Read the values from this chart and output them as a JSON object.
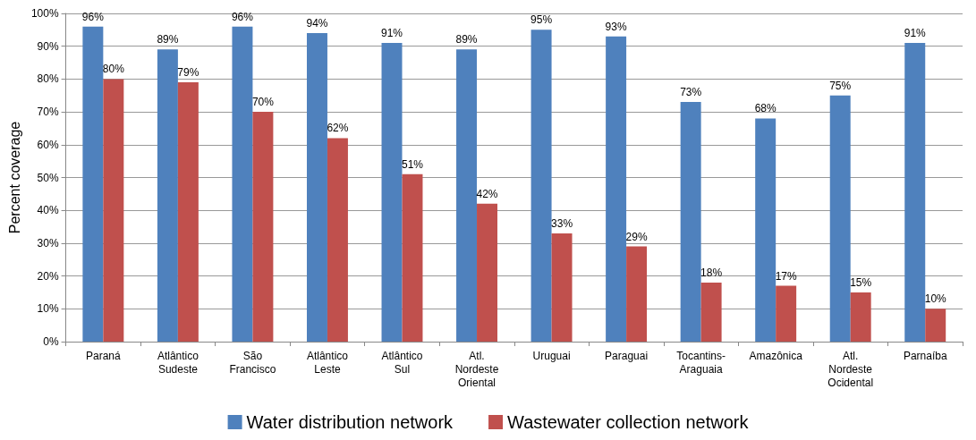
{
  "chart_data": {
    "type": "bar",
    "ylabel": "Percent coverage",
    "categories": [
      "Paraná",
      "Atlântico\nSudeste",
      "São\nFrancisco",
      "Atlântico\nLeste",
      "Atlântico\nSul",
      "Atl.\nNordeste\nOriental",
      "Uruguai",
      "Paraguai",
      "Tocantins-\nAraguaia",
      "Amazônica",
      "Atl.\nNordeste\nOcidental",
      "Parnaíba"
    ],
    "series": [
      {
        "name": "Water distribution network",
        "color": "#4f81bd",
        "values": [
          96,
          89,
          96,
          94,
          91,
          89,
          95,
          93,
          73,
          68,
          75,
          91
        ],
        "value_labels": [
          "96%",
          "89%",
          "96%",
          "94%",
          "91%",
          "89%",
          "95%",
          "93%",
          "73%",
          "68%",
          "75%",
          "91%"
        ]
      },
      {
        "name": "Wastewater collection network",
        "color": "#c0504d",
        "values": [
          80,
          79,
          70,
          62,
          51,
          42,
          33,
          29,
          18,
          17,
          15,
          10
        ],
        "value_labels": [
          "80%",
          "79%",
          "70%",
          "62%",
          "51%",
          "42%",
          "33%",
          "29%",
          "18%",
          "17%",
          "15%",
          "10%"
        ]
      }
    ],
    "ylim": [
      0,
      100
    ],
    "yticks": [
      {
        "value": 0,
        "label": "0%"
      },
      {
        "value": 10,
        "label": "10%"
      },
      {
        "value": 20,
        "label": "20%"
      },
      {
        "value": 30,
        "label": "30%"
      },
      {
        "value": 40,
        "label": "40%"
      },
      {
        "value": 50,
        "label": "50%"
      },
      {
        "value": 60,
        "label": "60%"
      },
      {
        "value": 70,
        "label": "70%"
      },
      {
        "value": 80,
        "label": "80%"
      },
      {
        "value": 90,
        "label": "90%"
      },
      {
        "value": 100,
        "label": "100%"
      }
    ],
    "grid": "y",
    "legend": "bottom"
  }
}
